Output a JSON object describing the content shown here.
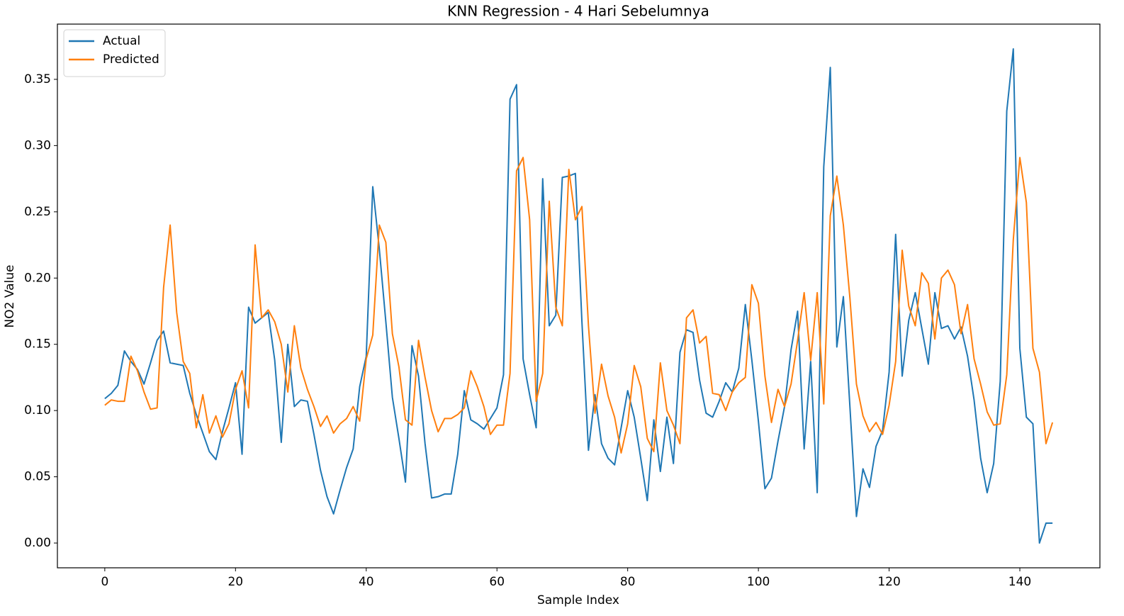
{
  "chart_data": {
    "type": "line",
    "title": "KNN Regression - 4 Hari Sebelumnya",
    "x_label": "Sample Index",
    "y_label": "NO2 Value",
    "x": [
      0,
      1,
      2,
      3,
      4,
      5,
      6,
      7,
      8,
      9,
      10,
      11,
      12,
      13,
      14,
      15,
      16,
      17,
      18,
      19,
      20,
      21,
      22,
      23,
      24,
      25,
      26,
      27,
      28,
      29,
      30,
      31,
      32,
      33,
      34,
      35,
      36,
      37,
      38,
      39,
      40,
      41,
      42,
      43,
      44,
      45,
      46,
      47,
      48,
      49,
      50,
      51,
      52,
      53,
      54,
      55,
      56,
      57,
      58,
      59,
      60,
      61,
      62,
      63,
      64,
      65,
      66,
      67,
      68,
      69,
      70,
      71,
      72,
      73,
      74,
      75,
      76,
      77,
      78,
      79,
      80,
      81,
      82,
      83,
      84,
      85,
      86,
      87,
      88,
      89,
      90,
      91,
      92,
      93,
      94,
      95,
      96,
      97,
      98,
      99,
      100,
      101,
      102,
      103,
      104,
      105,
      106,
      107,
      108,
      109,
      110,
      111,
      112,
      113,
      114,
      115,
      116,
      117,
      118,
      119,
      120,
      121,
      122,
      123,
      124,
      125,
      126,
      127,
      128,
      129,
      130,
      131,
      132,
      133,
      134,
      135,
      136,
      137,
      138,
      139,
      140,
      141,
      142,
      143,
      144,
      145
    ],
    "series": [
      {
        "name": "Actual",
        "color": "#1f77b4",
        "values": [
          0.109,
          0.113,
          0.119,
          0.145,
          0.137,
          0.131,
          0.12,
          0.136,
          0.153,
          0.16,
          0.136,
          0.135,
          0.134,
          0.113,
          0.097,
          0.083,
          0.069,
          0.063,
          0.084,
          0.102,
          0.121,
          0.067,
          0.178,
          0.166,
          0.17,
          0.174,
          0.138,
          0.076,
          0.15,
          0.103,
          0.108,
          0.107,
          0.082,
          0.055,
          0.035,
          0.022,
          0.04,
          0.057,
          0.071,
          0.118,
          0.141,
          0.269,
          0.222,
          0.167,
          0.11,
          0.079,
          0.046,
          0.149,
          0.126,
          0.075,
          0.034,
          0.035,
          0.037,
          0.037,
          0.067,
          0.115,
          0.093,
          0.09,
          0.086,
          0.094,
          0.102,
          0.127,
          0.335,
          0.346,
          0.139,
          0.112,
          0.087,
          0.275,
          0.164,
          0.172,
          0.276,
          0.277,
          0.279,
          0.167,
          0.07,
          0.112,
          0.075,
          0.064,
          0.059,
          0.087,
          0.115,
          0.095,
          0.064,
          0.032,
          0.093,
          0.054,
          0.095,
          0.06,
          0.144,
          0.161,
          0.159,
          0.123,
          0.098,
          0.095,
          0.107,
          0.121,
          0.114,
          0.132,
          0.18,
          0.138,
          0.092,
          0.041,
          0.049,
          0.077,
          0.103,
          0.146,
          0.175,
          0.071,
          0.137,
          0.038,
          0.284,
          0.359,
          0.148,
          0.186,
          0.103,
          0.02,
          0.056,
          0.042,
          0.073,
          0.085,
          0.129,
          0.233,
          0.126,
          0.168,
          0.189,
          0.162,
          0.135,
          0.189,
          0.162,
          0.164,
          0.154,
          0.163,
          0.141,
          0.108,
          0.064,
          0.038,
          0.06,
          0.122,
          0.326,
          0.373,
          0.147,
          0.095,
          0.09,
          0.0,
          0.015,
          0.015
        ]
      },
      {
        "name": "Predicted",
        "color": "#ff7f0e",
        "values": [
          0.104,
          0.108,
          0.107,
          0.107,
          0.141,
          0.13,
          0.114,
          0.101,
          0.102,
          0.193,
          0.24,
          0.174,
          0.137,
          0.128,
          0.087,
          0.112,
          0.083,
          0.096,
          0.08,
          0.09,
          0.116,
          0.13,
          0.102,
          0.225,
          0.17,
          0.176,
          0.167,
          0.15,
          0.114,
          0.164,
          0.132,
          0.116,
          0.103,
          0.088,
          0.096,
          0.083,
          0.09,
          0.094,
          0.103,
          0.092,
          0.139,
          0.157,
          0.24,
          0.227,
          0.158,
          0.133,
          0.093,
          0.089,
          0.153,
          0.125,
          0.1,
          0.084,
          0.094,
          0.094,
          0.097,
          0.102,
          0.13,
          0.118,
          0.103,
          0.082,
          0.089,
          0.089,
          0.128,
          0.281,
          0.291,
          0.244,
          0.107,
          0.128,
          0.258,
          0.178,
          0.164,
          0.282,
          0.244,
          0.254,
          0.164,
          0.098,
          0.135,
          0.111,
          0.095,
          0.068,
          0.09,
          0.134,
          0.118,
          0.079,
          0.069,
          0.136,
          0.1,
          0.089,
          0.075,
          0.17,
          0.176,
          0.151,
          0.156,
          0.113,
          0.112,
          0.1,
          0.114,
          0.121,
          0.125,
          0.195,
          0.181,
          0.126,
          0.091,
          0.116,
          0.103,
          0.12,
          0.153,
          0.189,
          0.138,
          0.189,
          0.105,
          0.247,
          0.277,
          0.24,
          0.185,
          0.12,
          0.096,
          0.084,
          0.091,
          0.082,
          0.104,
          0.137,
          0.221,
          0.179,
          0.164,
          0.204,
          0.196,
          0.154,
          0.2,
          0.206,
          0.195,
          0.158,
          0.18,
          0.139,
          0.12,
          0.099,
          0.089,
          0.09,
          0.127,
          0.229,
          0.291,
          0.257,
          0.147,
          0.129,
          0.075,
          0.091
        ]
      }
    ],
    "xlim": [
      -7.25,
      152.25
    ],
    "ylim": [
      -0.0187,
      0.3917
    ],
    "xticks": [
      0,
      20,
      40,
      60,
      80,
      100,
      120,
      140
    ],
    "yticks": [
      {
        "value": 0,
        "label": "0.00"
      },
      {
        "value": 0.05,
        "label": "0.05"
      },
      {
        "value": 0.1,
        "label": "0.10"
      },
      {
        "value": 0.15,
        "label": "0.15"
      },
      {
        "value": 0.2,
        "label": "0.20"
      },
      {
        "value": 0.25,
        "label": "0.25"
      },
      {
        "value": 0.3,
        "label": "0.30"
      },
      {
        "value": 0.35,
        "label": "0.35"
      }
    ],
    "legend": "upper left",
    "grid": false
  }
}
